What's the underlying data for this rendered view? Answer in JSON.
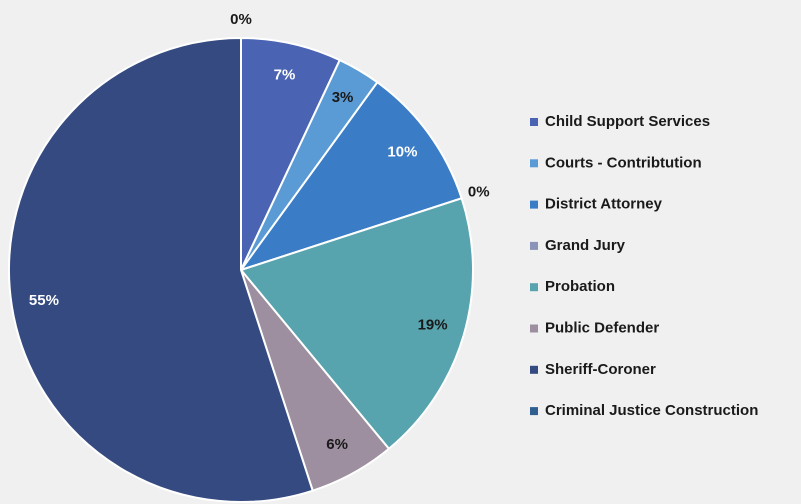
{
  "chart_data": {
    "type": "pie",
    "categories": [
      "Child Support Services",
      "Courts - Contribtution",
      "District Attorney",
      "Grand Jury",
      "Probation",
      "Public Defender",
      "Sheriff-Coroner",
      "Criminal Justice Construction"
    ],
    "values": [
      7,
      3,
      10,
      0,
      19,
      6,
      55,
      0
    ],
    "value_labels": [
      "7%",
      "3%",
      "10%",
      "0%",
      "19%",
      "6%",
      "55%",
      "0%"
    ],
    "colors": [
      "#4a64b3",
      "#5b9bd5",
      "#3a7cc6",
      "#8a93b8",
      "#57a4af",
      "#9d8f9f",
      "#344a80",
      "#2e5f90"
    ],
    "legend": "right"
  }
}
